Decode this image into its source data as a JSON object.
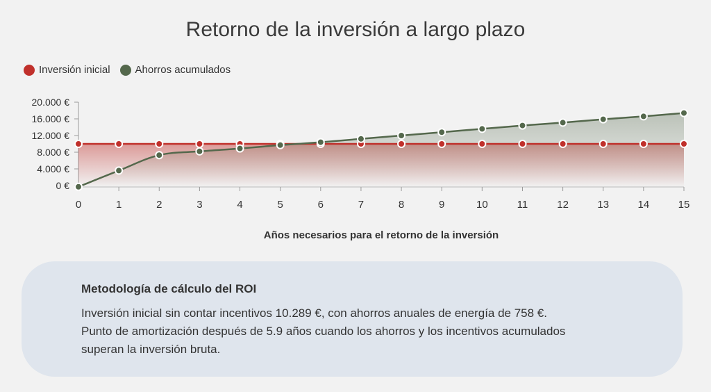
{
  "chart_data": {
    "type": "line",
    "title": "Retorno de la inversión a largo plazo",
    "xlabel": "Años necesarios para el retorno de la inversión",
    "ylabel": "",
    "x": [
      0,
      1,
      2,
      3,
      4,
      5,
      6,
      7,
      8,
      9,
      10,
      11,
      12,
      13,
      14,
      15
    ],
    "ylim": [
      0,
      20000
    ],
    "ytick_labels": [
      "0 €",
      "4.000 €",
      "8.000 €",
      "12.000 €",
      "16.000 €",
      "20.000 €"
    ],
    "ytick_values": [
      0,
      4000,
      8000,
      12000,
      16000,
      20000
    ],
    "series": [
      {
        "name": "Inversión inicial",
        "color": "#c0302b",
        "values": [
          10000,
          10000,
          10000,
          10000,
          10000,
          10000,
          10000,
          10000,
          10000,
          10000,
          10000,
          10000,
          10000,
          10000,
          10000,
          10000
        ]
      },
      {
        "name": "Ahorros acumulados",
        "color": "#54684c",
        "values": [
          -300,
          3600,
          7300,
          8200,
          8900,
          9700,
          10400,
          11200,
          12000,
          12800,
          13600,
          14400,
          15100,
          15900,
          16600,
          17400
        ]
      }
    ],
    "legend_position": "top-left"
  },
  "card": {
    "title": "Metodología de cálculo del ROI",
    "lines": [
      "Inversión inicial sin contar incentivos 10.289 €, con ahorros anuales de energía de 758 €.",
      "Punto de amortización después de 5.9 años cuando los ahorros y los incentivos acumulados",
      "superan la inversión bruta."
    ]
  }
}
